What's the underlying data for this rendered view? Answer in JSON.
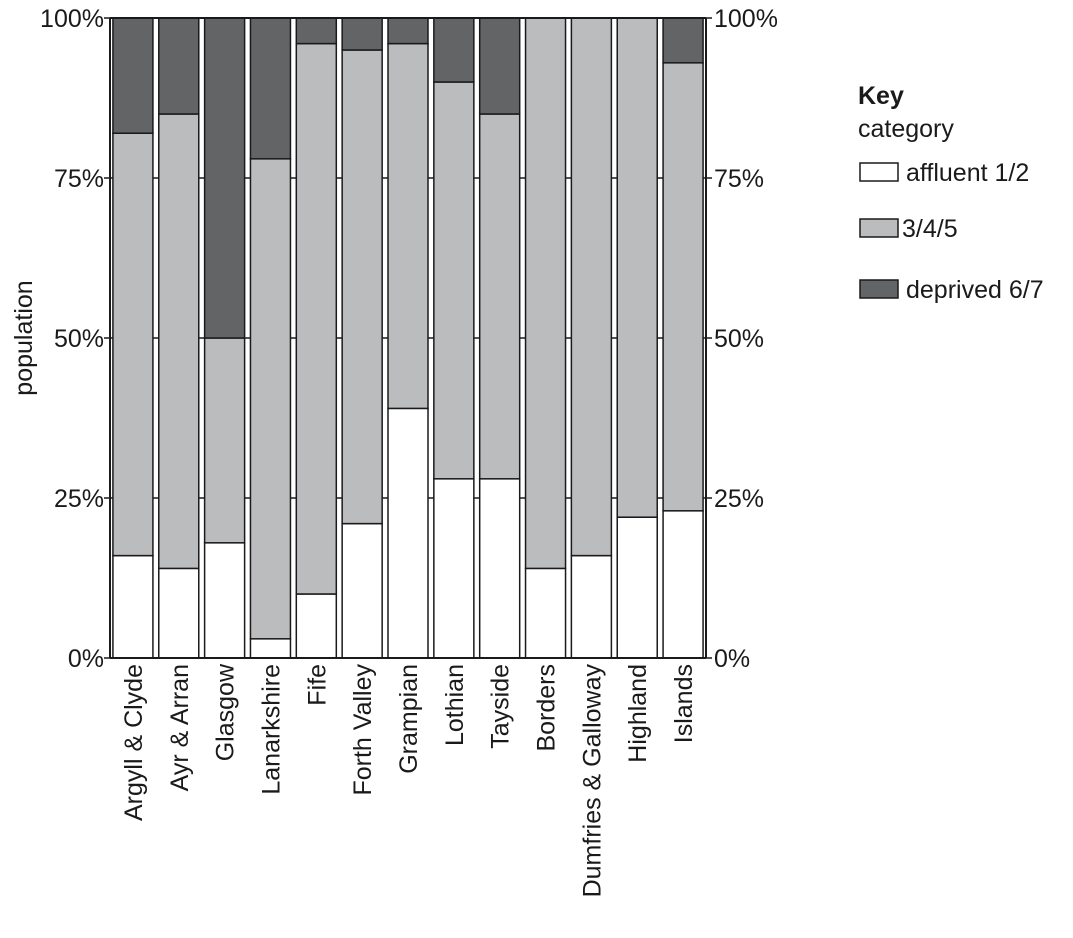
{
  "chart_data": {
    "type": "bar",
    "stacked": true,
    "categories": [
      "Argyll & Clyde",
      "Ayr & Arran",
      "Glasgow",
      "Lanarkshire",
      "Fife",
      "Forth Valley",
      "Grampian",
      "Lothian",
      "Tayside",
      "Borders",
      "Dumfries & Galloway",
      "Highland",
      "Islands"
    ],
    "series": [
      {
        "name": "affluent 1/2",
        "color": "#ffffff",
        "values": [
          16,
          14,
          18,
          3,
          10,
          21,
          39,
          28,
          28,
          14,
          16,
          22,
          23
        ]
      },
      {
        "name": "3/4/5",
        "color": "#bbbcbe",
        "values": [
          66,
          71,
          32,
          75,
          86,
          74,
          57,
          62,
          57,
          86,
          84,
          78,
          70
        ]
      },
      {
        "name": "deprived 6/7",
        "color": "#636466",
        "values": [
          18,
          15,
          50,
          22,
          4,
          5,
          4,
          10,
          15,
          0,
          0,
          0,
          7
        ]
      }
    ],
    "ylabel": "population",
    "xlabel": "",
    "ylim": [
      0,
      100
    ],
    "yticks": [
      "0%",
      "25%",
      "50%",
      "75%",
      "100%"
    ],
    "grid": true,
    "legend": {
      "title": "Key",
      "subtitle": "category",
      "position": "right"
    }
  }
}
